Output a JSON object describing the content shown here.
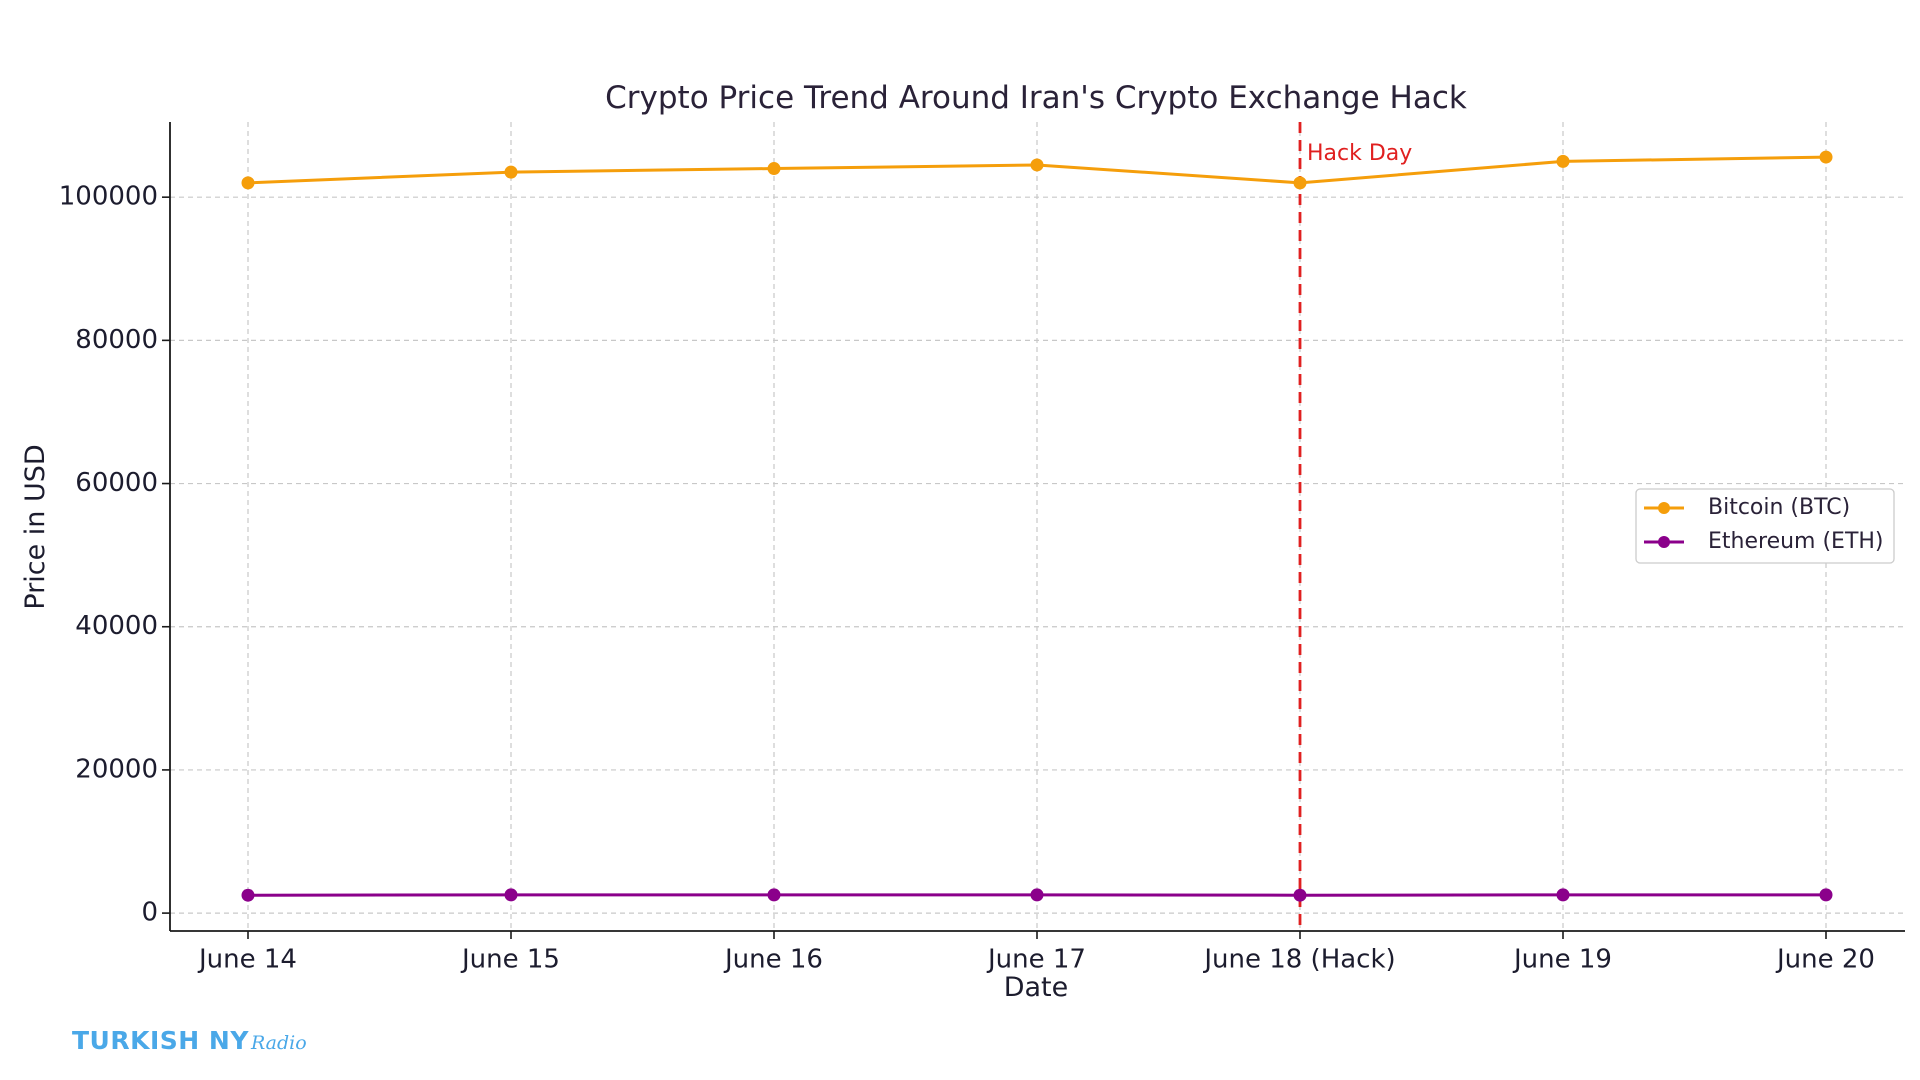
{
  "chart_data": {
    "type": "line",
    "title": "Crypto Price Trend Around Iran's Crypto Exchange Hack",
    "xlabel": "Date",
    "ylabel": "Price in USD",
    "categories": [
      "June 14",
      "June 15",
      "June 16",
      "June 17",
      "June 18 (Hack)",
      "June 19",
      "June 20"
    ],
    "series": [
      {
        "name": "Bitcoin (BTC)",
        "color": "#f59e0b",
        "values": [
          102000,
          103500,
          104000,
          104500,
          102000,
          105000,
          105600
        ]
      },
      {
        "name": "Ethereum (ETH)",
        "color": "#8b008b",
        "values": [
          2500,
          2550,
          2550,
          2550,
          2500,
          2550,
          2550
        ]
      }
    ],
    "ylim": [
      -2500,
      110500
    ],
    "yticks": [
      0,
      20000,
      40000,
      60000,
      80000,
      100000
    ],
    "grid": true,
    "legend_position": "center-right",
    "annotations": [
      {
        "type": "vertical-line",
        "category": "June 18 (Hack)",
        "label": "Hack Day",
        "color": "#e02020",
        "style": "dashed"
      }
    ]
  },
  "watermark": {
    "main": "TURKISH NY",
    "script": "Radio"
  }
}
